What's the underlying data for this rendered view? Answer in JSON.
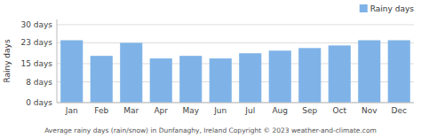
{
  "chart_data": {
    "type": "bar",
    "categories": [
      "Jan",
      "Feb",
      "Mar",
      "Apr",
      "May",
      "Jun",
      "Jul",
      "Aug",
      "Sep",
      "Oct",
      "Nov",
      "Dec"
    ],
    "series": [
      {
        "name": "Rainy days",
        "color": "#7fb3e8",
        "values": [
          24,
          18,
          23,
          17,
          18,
          17,
          19,
          20,
          21,
          22,
          24,
          24
        ]
      }
    ],
    "ylim": [
      0,
      32
    ],
    "yticks": [
      {
        "value": 0,
        "label": "0 days"
      },
      {
        "value": 8,
        "label": "8 days"
      },
      {
        "value": 15,
        "label": "15 days"
      },
      {
        "value": 23,
        "label": "23 days"
      },
      {
        "value": 30,
        "label": "30 days"
      }
    ],
    "ylabel": "Rainy days",
    "xlabel": "Average rainy days (rain/snow) in Dunfanaghy, Ireland   Copyright © 2023  weather-and-climate.com",
    "grid": true,
    "legend": "upper right"
  }
}
